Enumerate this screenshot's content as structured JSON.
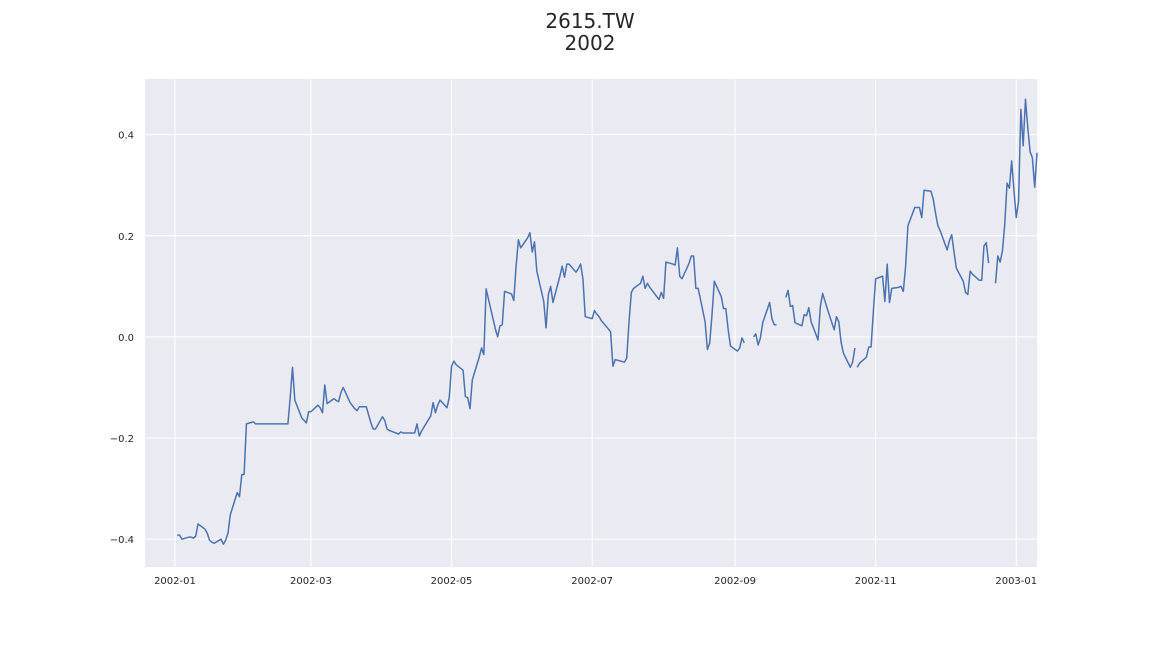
{
  "chart_data": {
    "type": "line",
    "title": "2615.TW",
    "subtitle": "2002",
    "xlabel": "",
    "ylabel": "",
    "xlim": [
      "2001-12-19",
      "2003-01-10"
    ],
    "ylim": [
      -0.455,
      0.51
    ],
    "grid": true,
    "x_ticks": [
      "2002-01",
      "2002-03",
      "2002-05",
      "2002-07",
      "2002-09",
      "2002-11",
      "2003-01"
    ],
    "y_ticks": [
      -0.4,
      -0.2,
      0.0,
      0.2,
      0.4
    ],
    "y_tick_labels": [
      "−0.4",
      "−0.2",
      "0.0",
      "0.2",
      "0.4"
    ],
    "line_color": "#4c72b0",
    "series": [
      {
        "values": [
          [
            "2002-01-02",
            -0.392
          ],
          [
            "2002-01-03",
            -0.392
          ],
          [
            "2002-01-04",
            -0.4
          ],
          [
            "2002-01-07",
            -0.396
          ],
          [
            "2002-01-08",
            -0.396
          ],
          [
            "2002-01-09",
            -0.398
          ],
          [
            "2002-01-10",
            -0.394
          ],
          [
            "2002-01-11",
            -0.37
          ],
          [
            "2002-01-14",
            -0.38
          ],
          [
            "2002-01-15",
            -0.388
          ],
          [
            "2002-01-16",
            -0.402
          ],
          [
            "2002-01-17",
            -0.406
          ],
          [
            "2002-01-18",
            -0.408
          ],
          [
            "2002-01-21",
            -0.4
          ],
          [
            "2002-01-22",
            -0.41
          ],
          [
            "2002-01-23",
            -0.402
          ],
          [
            "2002-01-24",
            -0.388
          ],
          [
            "2002-01-25",
            -0.352
          ],
          [
            "2002-01-28",
            -0.308
          ],
          [
            "2002-01-29",
            -0.316
          ],
          [
            "2002-01-30",
            -0.272
          ],
          [
            "2002-01-31",
            -0.272
          ],
          [
            "2002-02-01",
            -0.172
          ],
          [
            "2002-02-04",
            -0.168
          ],
          [
            "2002-02-05",
            -0.172
          ],
          [
            "2002-02-06",
            -0.172
          ],
          [
            "2002-02-19",
            -0.172
          ],
          [
            "2002-02-20",
            -0.12
          ],
          [
            "2002-02-21",
            -0.06
          ],
          [
            "2002-02-22",
            -0.125
          ],
          [
            "2002-02-25",
            -0.16
          ],
          [
            "2002-02-26",
            -0.165
          ],
          [
            "2002-02-27",
            -0.17
          ],
          [
            "2002-02-28",
            -0.148
          ],
          [
            "2002-03-01",
            -0.148
          ],
          [
            "2002-03-04",
            -0.135
          ],
          [
            "2002-03-05",
            -0.14
          ],
          [
            "2002-03-06",
            -0.15
          ],
          [
            "2002-03-07",
            -0.095
          ],
          [
            "2002-03-08",
            -0.132
          ],
          [
            "2002-03-11",
            -0.122
          ],
          [
            "2002-03-12",
            -0.126
          ],
          [
            "2002-03-13",
            -0.128
          ],
          [
            "2002-03-14",
            -0.11
          ],
          [
            "2002-03-15",
            -0.1
          ],
          [
            "2002-03-18",
            -0.13
          ],
          [
            "2002-03-19",
            -0.136
          ],
          [
            "2002-03-20",
            -0.142
          ],
          [
            "2002-03-21",
            -0.146
          ],
          [
            "2002-03-22",
            -0.138
          ],
          [
            "2002-03-25",
            -0.138
          ],
          [
            "2002-03-26",
            -0.154
          ],
          [
            "2002-03-27",
            -0.17
          ],
          [
            "2002-03-28",
            -0.182
          ],
          [
            "2002-03-29",
            -0.182
          ],
          [
            "2002-04-01",
            -0.158
          ],
          [
            "2002-04-02",
            -0.165
          ],
          [
            "2002-04-03",
            -0.182
          ],
          [
            "2002-04-04",
            -0.185
          ],
          [
            "2002-04-08",
            -0.192
          ],
          [
            "2002-04-09",
            -0.188
          ],
          [
            "2002-04-10",
            -0.19
          ],
          [
            "2002-04-11",
            -0.19
          ],
          [
            "2002-04-15",
            -0.19
          ],
          [
            "2002-04-16",
            -0.172
          ],
          [
            "2002-04-17",
            -0.196
          ],
          [
            "2002-04-18",
            -0.186
          ],
          [
            "2002-04-22",
            -0.156
          ],
          [
            "2002-04-23",
            -0.13
          ],
          [
            "2002-04-24",
            -0.15
          ],
          [
            "2002-04-25",
            -0.135
          ],
          [
            "2002-04-26",
            -0.125
          ],
          [
            "2002-04-29",
            -0.14
          ],
          [
            "2002-04-30",
            -0.12
          ],
          [
            "2002-05-01",
            -0.058
          ],
          [
            "2002-05-02",
            -0.048
          ],
          [
            "2002-05-03",
            -0.055
          ],
          [
            "2002-05-06",
            -0.066
          ],
          [
            "2002-05-07",
            -0.118
          ],
          [
            "2002-05-08",
            -0.12
          ],
          [
            "2002-05-09",
            -0.142
          ],
          [
            "2002-05-10",
            -0.085
          ],
          [
            "2002-05-13",
            -0.04
          ],
          [
            "2002-05-14",
            -0.022
          ],
          [
            "2002-05-15",
            -0.035
          ],
          [
            "2002-05-16",
            0.095
          ],
          [
            "2002-05-17",
            0.075
          ],
          [
            "2002-05-20",
            0.016
          ],
          [
            "2002-05-21",
            0.0
          ],
          [
            "2002-05-22",
            0.022
          ],
          [
            "2002-05-23",
            0.024
          ],
          [
            "2002-05-24",
            0.09
          ],
          [
            "2002-05-27",
            0.085
          ],
          [
            "2002-05-28",
            0.072
          ],
          [
            "2002-05-29",
            0.14
          ],
          [
            "2002-05-30",
            0.192
          ],
          [
            "2002-05-31",
            0.176
          ],
          [
            "2002-06-03",
            0.196
          ],
          [
            "2002-06-04",
            0.206
          ],
          [
            "2002-06-05",
            0.168
          ],
          [
            "2002-06-06",
            0.188
          ],
          [
            "2002-06-07",
            0.13
          ],
          [
            "2002-06-10",
            0.07
          ],
          [
            "2002-06-11",
            0.018
          ],
          [
            "2002-06-12",
            0.084
          ],
          [
            "2002-06-13",
            0.1
          ],
          [
            "2002-06-14",
            0.068
          ],
          [
            "2002-06-17",
            0.12
          ],
          [
            "2002-06-18",
            0.14
          ],
          [
            "2002-06-19",
            0.118
          ],
          [
            "2002-06-20",
            0.144
          ],
          [
            "2002-06-21",
            0.144
          ],
          [
            "2002-06-24",
            0.128
          ],
          [
            "2002-06-25",
            0.135
          ],
          [
            "2002-06-26",
            0.144
          ],
          [
            "2002-06-27",
            0.115
          ],
          [
            "2002-06-28",
            0.04
          ],
          [
            "2002-07-01",
            0.036
          ],
          [
            "2002-07-02",
            0.052
          ],
          [
            "2002-07-03",
            0.045
          ],
          [
            "2002-07-04",
            0.04
          ],
          [
            "2002-07-05",
            0.032
          ],
          [
            "2002-07-08",
            0.016
          ],
          [
            "2002-07-09",
            0.01
          ],
          [
            "2002-07-10",
            -0.058
          ],
          [
            "2002-07-11",
            -0.045
          ],
          [
            "2002-07-12",
            -0.046
          ],
          [
            "2002-07-15",
            -0.05
          ],
          [
            "2002-07-16",
            -0.042
          ],
          [
            "2002-07-17",
            0.03
          ],
          [
            "2002-07-18",
            0.088
          ],
          [
            "2002-07-19",
            0.096
          ],
          [
            "2002-07-22",
            0.106
          ],
          [
            "2002-07-23",
            0.12
          ],
          [
            "2002-07-24",
            0.096
          ],
          [
            "2002-07-25",
            0.106
          ],
          [
            "2002-07-26",
            0.098
          ],
          [
            "2002-07-29",
            0.08
          ],
          [
            "2002-07-30",
            0.074
          ],
          [
            "2002-07-31",
            0.088
          ],
          [
            "2002-08-01",
            0.076
          ],
          [
            "2002-08-02",
            0.148
          ],
          [
            "2002-08-05",
            0.144
          ],
          [
            "2002-08-06",
            0.142
          ],
          [
            "2002-08-07",
            0.176
          ],
          [
            "2002-08-08",
            0.12
          ],
          [
            "2002-08-09",
            0.115
          ],
          [
            "2002-08-12",
            0.145
          ],
          [
            "2002-08-13",
            0.16
          ],
          [
            "2002-08-14",
            0.16
          ],
          [
            "2002-08-15",
            0.096
          ],
          [
            "2002-08-16",
            0.096
          ],
          [
            "2002-08-19",
            0.03
          ],
          [
            "2002-08-20",
            -0.025
          ],
          [
            "2002-08-21",
            -0.012
          ],
          [
            "2002-08-22",
            0.044
          ],
          [
            "2002-08-23",
            0.11
          ],
          [
            "2002-08-26",
            0.08
          ],
          [
            "2002-08-27",
            0.056
          ],
          [
            "2002-08-28",
            0.056
          ],
          [
            "2002-08-29",
            0.015
          ],
          [
            "2002-08-30",
            -0.018
          ],
          [
            "2002-09-02",
            -0.028
          ],
          [
            "2002-09-03",
            -0.022
          ],
          [
            "2002-09-04",
            -0.002
          ],
          [
            "2002-09-05",
            -0.012
          ],
          null,
          [
            "2002-09-09",
            0.0
          ],
          [
            "2002-09-10",
            0.006
          ],
          [
            "2002-09-11",
            -0.016
          ],
          [
            "2002-09-12",
            -0.002
          ],
          [
            "2002-09-13",
            0.028
          ],
          [
            "2002-09-16",
            0.068
          ],
          [
            "2002-09-17",
            0.036
          ],
          [
            "2002-09-18",
            0.024
          ],
          [
            "2002-09-19",
            0.024
          ],
          null,
          [
            "2002-09-23",
            0.078
          ],
          [
            "2002-09-24",
            0.092
          ],
          [
            "2002-09-25",
            0.06
          ],
          [
            "2002-09-26",
            0.062
          ],
          [
            "2002-09-27",
            0.028
          ],
          [
            "2002-09-30",
            0.022
          ],
          [
            "2002-10-01",
            0.044
          ],
          [
            "2002-10-02",
            0.042
          ],
          [
            "2002-10-03",
            0.058
          ],
          [
            "2002-10-04",
            0.03
          ],
          [
            "2002-10-07",
            -0.006
          ],
          [
            "2002-10-08",
            0.06
          ],
          [
            "2002-10-09",
            0.086
          ],
          [
            "2002-10-11",
            0.056
          ],
          [
            "2002-10-14",
            0.014
          ],
          [
            "2002-10-15",
            0.04
          ],
          [
            "2002-10-16",
            0.03
          ],
          [
            "2002-10-17",
            -0.01
          ],
          [
            "2002-10-18",
            -0.032
          ],
          [
            "2002-10-21",
            -0.06
          ],
          [
            "2002-10-22",
            -0.05
          ],
          [
            "2002-10-23",
            -0.022
          ],
          null,
          [
            "2002-10-24",
            -0.06
          ],
          [
            "2002-10-25",
            -0.052
          ],
          [
            "2002-10-28",
            -0.04
          ],
          [
            "2002-10-29",
            -0.02
          ],
          [
            "2002-10-30",
            -0.02
          ],
          [
            "2002-10-31",
            0.05
          ],
          [
            "2002-11-01",
            0.115
          ],
          [
            "2002-11-04",
            0.12
          ],
          [
            "2002-11-05",
            0.07
          ],
          [
            "2002-11-06",
            0.144
          ],
          [
            "2002-11-07",
            0.068
          ],
          [
            "2002-11-08",
            0.096
          ],
          [
            "2002-11-11",
            0.098
          ],
          [
            "2002-11-12",
            0.1
          ],
          [
            "2002-11-13",
            0.09
          ],
          [
            "2002-11-14",
            0.14
          ],
          [
            "2002-11-15",
            0.22
          ],
          [
            "2002-11-18",
            0.256
          ],
          [
            "2002-11-19",
            0.256
          ],
          [
            "2002-11-20",
            0.256
          ],
          [
            "2002-11-21",
            0.236
          ],
          [
            "2002-11-22",
            0.29
          ],
          [
            "2002-11-25",
            0.288
          ],
          [
            "2002-11-26",
            0.272
          ],
          [
            "2002-11-27",
            0.244
          ],
          [
            "2002-11-28",
            0.22
          ],
          [
            "2002-11-29",
            0.21
          ],
          [
            "2002-12-02",
            0.172
          ],
          [
            "2002-12-03",
            0.19
          ],
          [
            "2002-12-04",
            0.202
          ],
          [
            "2002-12-05",
            0.168
          ],
          [
            "2002-12-06",
            0.136
          ],
          [
            "2002-12-09",
            0.11
          ],
          [
            "2002-12-10",
            0.088
          ],
          [
            "2002-12-11",
            0.084
          ],
          [
            "2002-12-12",
            0.13
          ],
          [
            "2002-12-13",
            0.124
          ],
          [
            "2002-12-16",
            0.112
          ],
          [
            "2002-12-17",
            0.112
          ],
          [
            "2002-12-18",
            0.18
          ],
          [
            "2002-12-19",
            0.186
          ],
          [
            "2002-12-20",
            0.146
          ],
          null,
          [
            "2002-12-23",
            0.106
          ],
          [
            "2002-12-24",
            0.16
          ],
          [
            "2002-12-25",
            0.148
          ],
          [
            "2002-12-26",
            0.17
          ],
          [
            "2002-12-27",
            0.222
          ],
          [
            "2002-12-28",
            0.304
          ],
          [
            "2002-12-29",
            0.294
          ],
          [
            "2002-12-30",
            0.348
          ],
          [
            "2002-12-31",
            0.29
          ],
          [
            "2003-01-01",
            0.236
          ],
          [
            "2003-01-02",
            0.268
          ],
          [
            "2003-01-03",
            0.45
          ],
          [
            "2003-01-04",
            0.378
          ],
          [
            "2003-01-05",
            0.47
          ],
          [
            "2003-01-06",
            0.414
          ],
          [
            "2003-01-07",
            0.366
          ],
          [
            "2003-01-08",
            0.354
          ],
          [
            "2003-01-09",
            0.296
          ],
          [
            "2003-01-10",
            0.364
          ]
        ]
      }
    ]
  }
}
